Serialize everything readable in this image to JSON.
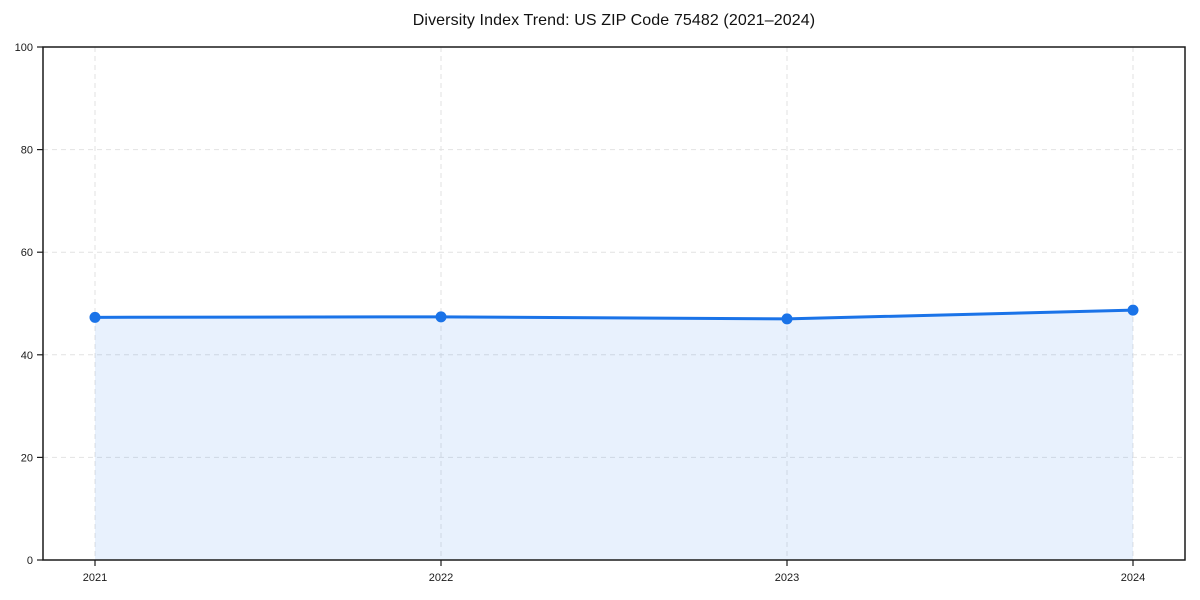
{
  "figure": {
    "background": "#ffffff"
  },
  "chart_data": {
    "type": "area",
    "title": "Diversity Index Trend: US ZIP Code 75482 (2021–2024)",
    "x": [
      "2021",
      "2022",
      "2023",
      "2024"
    ],
    "series": [
      {
        "name": "Diversity Index",
        "values": [
          47.3,
          47.4,
          47.0,
          48.7
        ]
      }
    ],
    "xlabel": "",
    "ylabel": "",
    "ylim": [
      0,
      100
    ],
    "yticks": [
      0,
      20,
      40,
      60,
      80,
      100
    ],
    "grid": true,
    "grid_style": "dashed",
    "legend": "none",
    "markers": true,
    "colors": {
      "line": "#1a73e8",
      "fill": "rgba(26,115,232,0.10)",
      "grid": "#e2e2e2",
      "spine": "#1a1a1a",
      "tick_label": "#1a1a1a",
      "title": "#111111"
    }
  }
}
